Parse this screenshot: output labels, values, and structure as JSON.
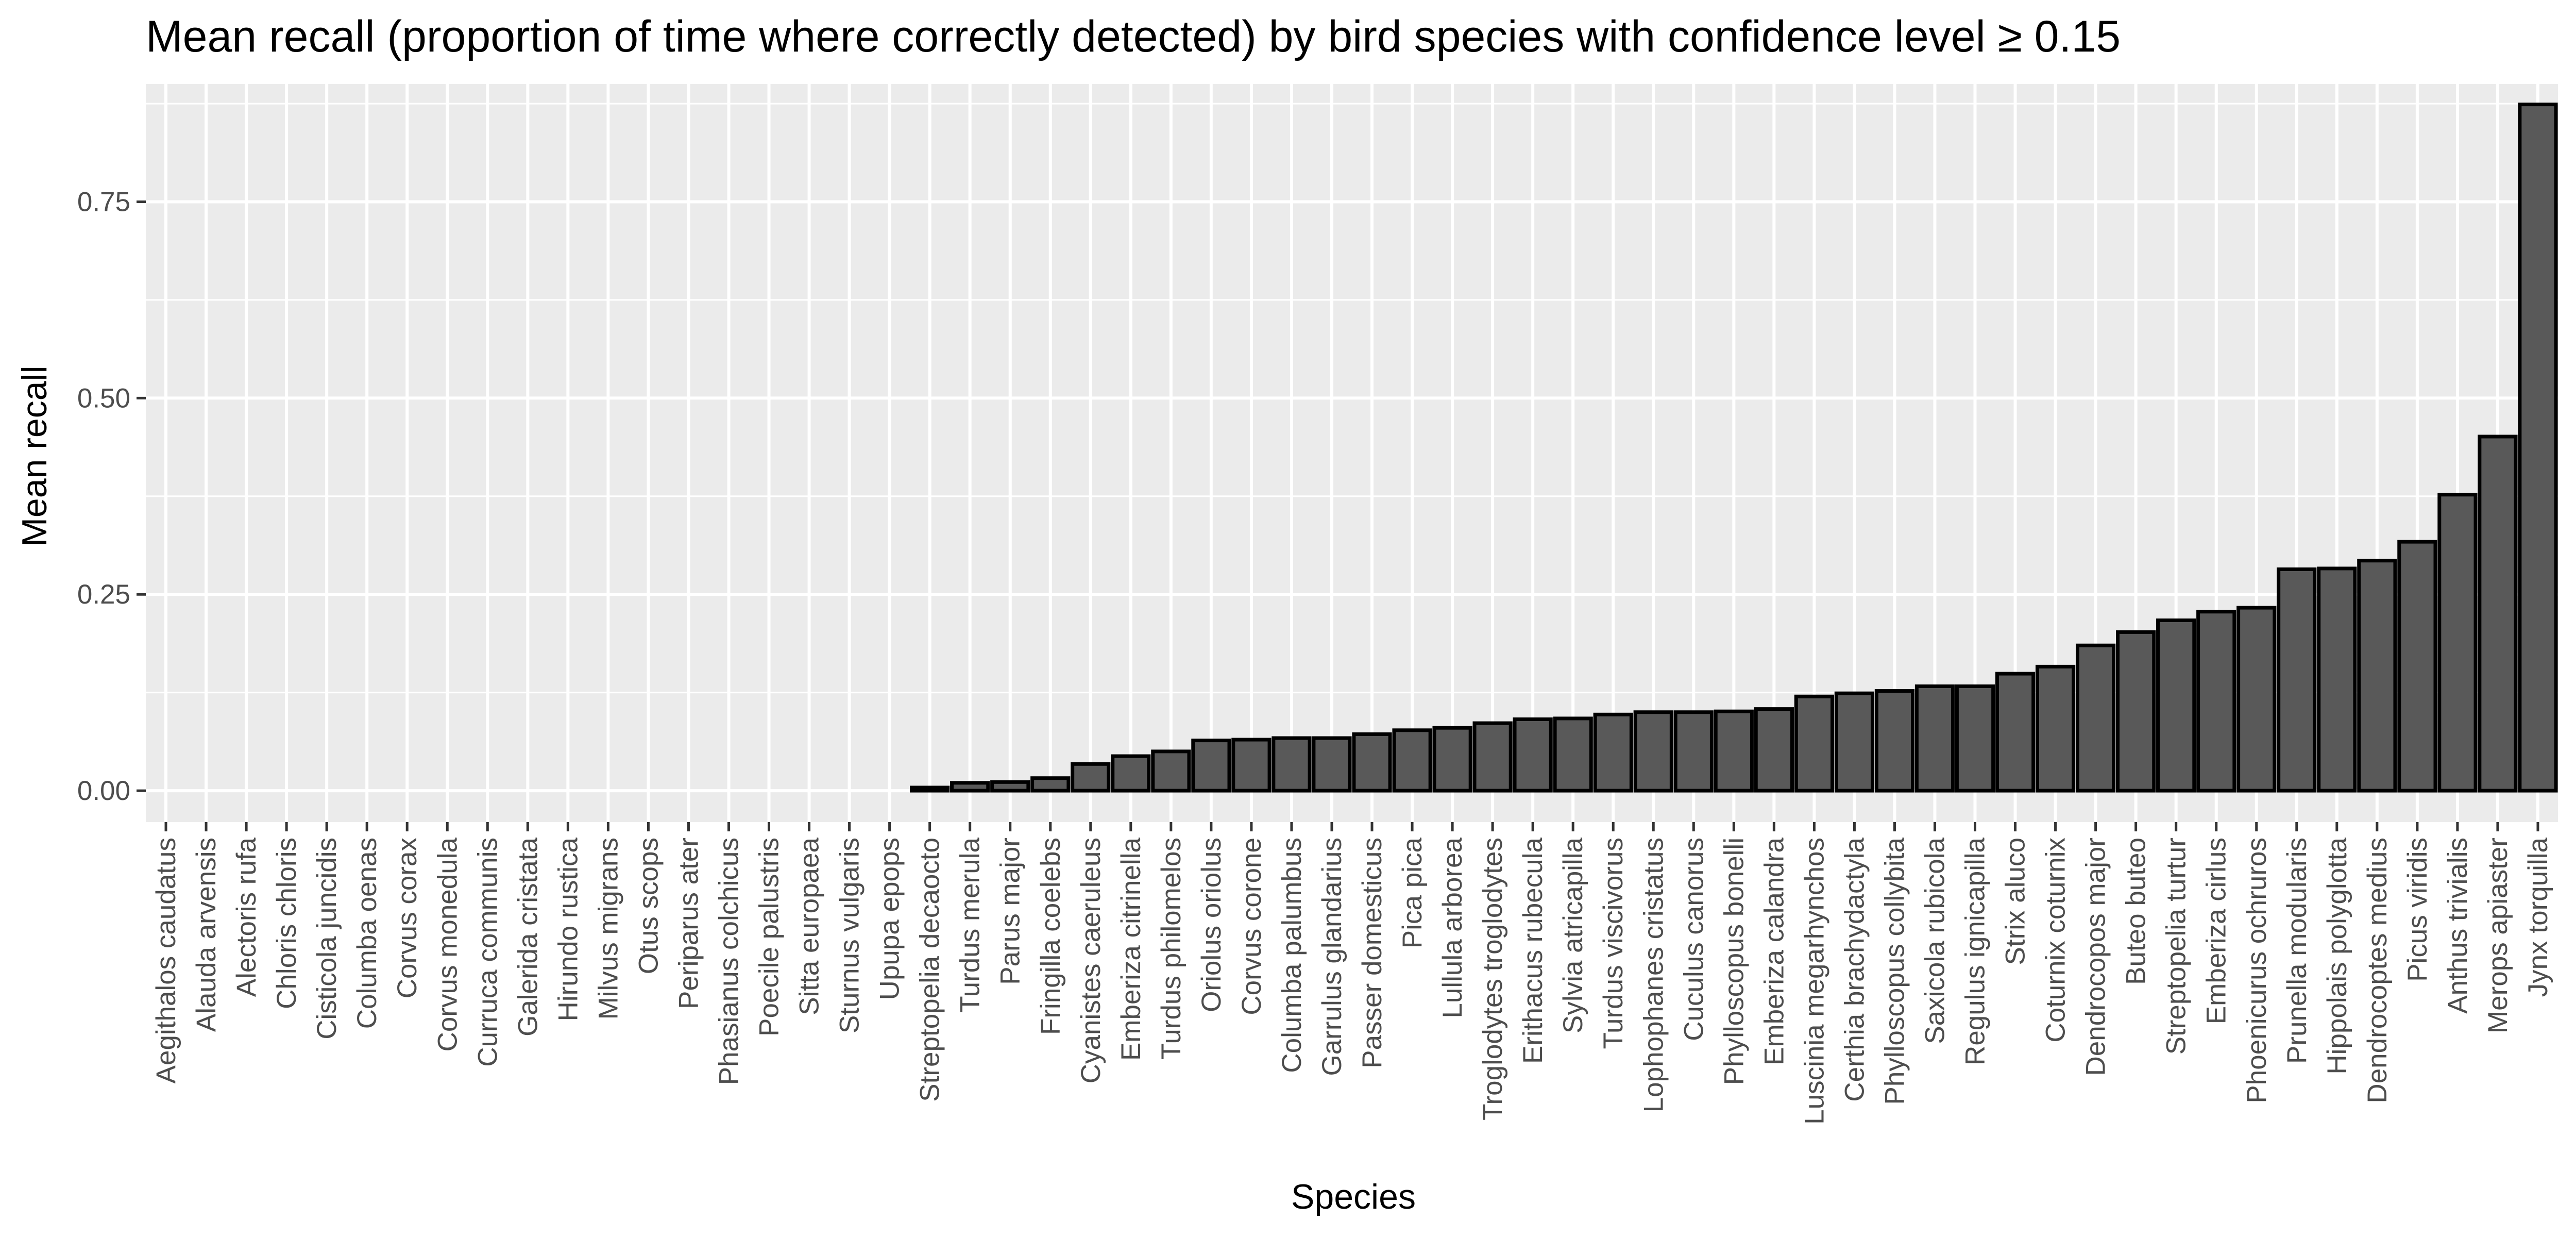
{
  "chart_data": {
    "type": "bar",
    "title": "Mean recall (proportion of time where correctly detected) by bird species with confidence level ≥ 0.15",
    "xlabel": "Species",
    "ylabel": "Mean recall",
    "ylim": [
      -0.04,
      0.9
    ],
    "yticks": [
      0,
      0.25,
      0.5,
      0.75
    ],
    "ytick_labels": [
      "0.00",
      "0.25",
      "0.50",
      "0.75"
    ],
    "grid": true,
    "categories": [
      "Aegithalos caudatus",
      "Alauda arvensis",
      "Alectoris rufa",
      "Chloris chloris",
      "Cisticola juncidis",
      "Columba oenas",
      "Corvus corax",
      "Corvus monedula",
      "Curruca communis",
      "Galerida cristata",
      "Hirundo rustica",
      "Milvus migrans",
      "Otus scops",
      "Periparus ater",
      "Phasianus colchicus",
      "Poecile palustris",
      "Sitta europaea",
      "Sturnus vulgaris",
      "Upupa epops",
      "Streptopelia decaocto",
      "Turdus merula",
      "Parus major",
      "Fringilla coelebs",
      "Cyanistes caeruleus",
      "Emberiza citrinella",
      "Turdus philomelos",
      "Oriolus oriolus",
      "Corvus corone",
      "Columba palumbus",
      "Garrulus glandarius",
      "Passer domesticus",
      "Pica pica",
      "Lullula arborea",
      "Troglodytes troglodytes",
      "Erithacus rubecula",
      "Sylvia atricapilla",
      "Turdus viscivorus",
      "Lophophanes cristatus",
      "Cuculus canorus",
      "Phylloscopus bonelli",
      "Emberiza calandra",
      "Luscinia megarhynchos",
      "Certhia brachydactyla",
      "Phylloscopus collybita",
      "Saxicola rubicola",
      "Regulus ignicapilla",
      "Strix aluco",
      "Coturnix coturnix",
      "Dendrocopos major",
      "Buteo buteo",
      "Streptopelia turtur",
      "Emberiza cirlus",
      "Phoenicurus ochruros",
      "Prunella modularis",
      "Hippolais polyglotta",
      "Dendrocoptes medius",
      "Picus viridis",
      "Anthus trivialis",
      "Merops apiaster",
      "Jynx torquilla"
    ],
    "values": [
      0,
      0,
      0,
      0,
      0,
      0,
      0,
      0,
      0,
      0,
      0,
      0,
      0,
      0,
      0,
      0,
      0,
      0,
      0,
      0.004,
      0.01,
      0.011,
      0.016,
      0.034,
      0.044,
      0.05,
      0.064,
      0.065,
      0.067,
      0.067,
      0.072,
      0.077,
      0.08,
      0.086,
      0.091,
      0.092,
      0.097,
      0.1,
      0.1,
      0.101,
      0.104,
      0.12,
      0.124,
      0.127,
      0.133,
      0.133,
      0.149,
      0.158,
      0.185,
      0.202,
      0.217,
      0.228,
      0.233,
      0.282,
      0.283,
      0.293,
      0.317,
      0.377,
      0.451,
      0.874
    ],
    "colors": {
      "bar_fill": "#595959",
      "bar_stroke": "#000000",
      "panel": "#ebebeb",
      "grid_major": "#ffffff",
      "tick_text": "#4d4d4d"
    }
  }
}
